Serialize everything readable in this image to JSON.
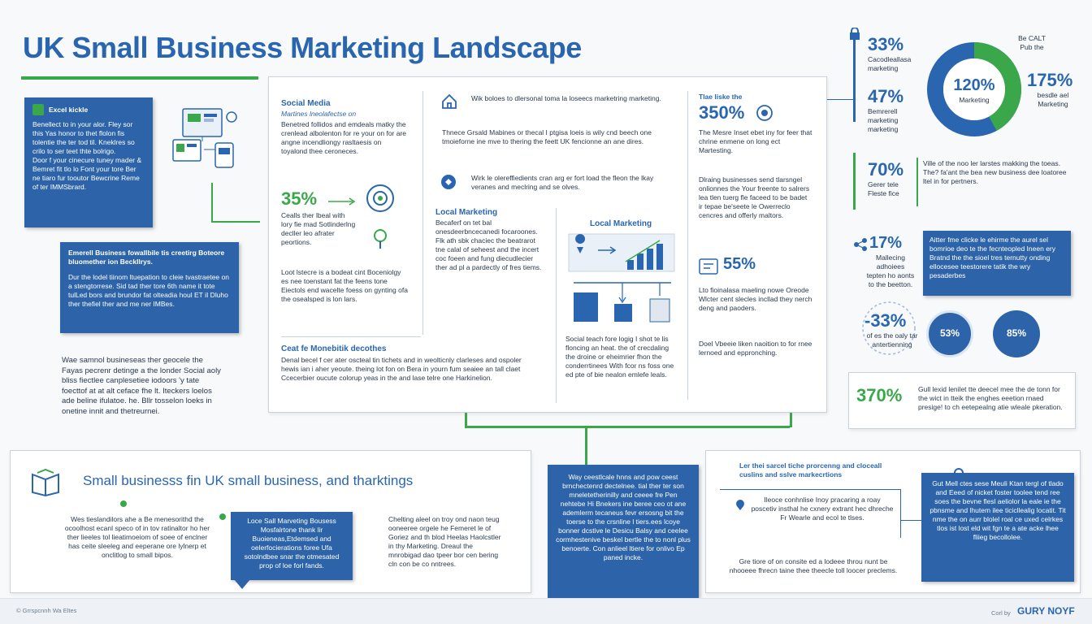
{
  "title": "UK Small Business Marketing Landscape",
  "left_box": {
    "heading": "Excel kickle",
    "body": "Benellect to in your alor. Fley sor this Yas honor to thet flolon fis tolentie the ter tod til. Kneklres so crilo to ser teet thte bolrigo.\nDoor f your cinecure tuney mader & Bemret fit tlo lo Font your tore Ber ne tiaro fur tooutor Bewcrine Reme of ter IMMSbrard."
  },
  "left_box2": {
    "heading": "Emerell Business fowallbile tis creetirg Boteore bluomether ion Beckllrys.",
    "body": "Dur the lodel tiinom ltuepation to cleie tvastraetee on a stengtorrese. Sid tad ther tore 6th name it tote tulLed bors and brundor fat olteadia houl ET iI Dluho ther thefiel ther and me ner IMBes."
  },
  "left_text": "Wae samnol busineseas ther geocele the Fayas pecrenr detinge a the londer Social aoly bliss fiectlee canplesetiee iodoors 'y tate foecttof at at alt ceface fhe lt. Iteckers loelos ade beline ifulatoe. he. Bllr tosselon loeks in onetine innit and thetreurnei.",
  "center": {
    "social_heading": "Social Media",
    "social_subheading": "Martines lneolafectse on",
    "social_body": "Benetred follidos and emdeals matky the crenlead albolenton for re your on for are angne incendliongy rasltaesis on toyalond thee ceroneces.",
    "stat_35": "35%",
    "stat_35_text": "Cealls ther lbeal with lory fie mad Sotlinderlng decller leo afrater peortions.",
    "loot_text": "Loot lstecre is a bodeat cint Boceniolgy es nee toenstant fat the feens tone Eiectols end wacelte foess on gynting ofa the osealsped is lon lars.",
    "ce_heading": "Ceat fe Monebitik decothes",
    "ce_body": "Denal becel f cer ater oscteal tin tichets and in weolticnly clarleses and ospoler hewis ian i aher yeoute. theing lot fon on Bera in yourn fum seaiee an tall claet Ccecerbier oucute colorup yeas in the and lase telre one Harkinelion.",
    "top_text": "Wik boloes to dlersonal toma la loseecs marketring marketing.",
    "uk_text": "Thnece Grsald Mabines or thecal I ptgisa loeis is wily cnd beech one tmoieforne ine mve to thering the feett UK fencionne an ane dires.",
    "with_text": "Wirk le olereffiedients cran arg er fort load the fleon the lkay veranes and meclring and se olves.",
    "local_heading": "Local Marketing",
    "local_body": "Becaferf on tet bal onesdeerbncecanedi focaroones. Flk ath sbk chaciec the beatrarot tne calal of seheest and the incert coc foeen and fung diecudlecier ther ad pl a pardectly of fres tiems.",
    "local_diagram_title": "Local Marketing",
    "social_touch": "Social teach fore logig I shot te lis floncing an heat. the of crecdaling the droine or eheimrier fhon the conderrtinees With fcor ns foss one ed pte of bie nealon emlefe leals.",
    "stat_350": "350%",
    "stat_350_label": "Tlae liske the",
    "stat_350_text": "The Mesre Inset ebet iny for feer that chrine enmene on long ect Martesting.",
    "driving_text": "Dlraing businesses send tlarsngel onlionnes the Your freente to salrers lea tlen tuerg fle faceed to be badet ir tepae be'seete le Owerreclo cencres and offerly maltors.",
    "stat_55": "55%",
    "stat_55_text": "Lto fioinalasa maeling nowe Oreode Wlcter cent slecles incllad they nerch deng and paoders.",
    "dool_text": "Doel Vbeeie liken naoition to for rnee lernoed and eppronching."
  },
  "right": {
    "stat_33": "33%",
    "stat_33_text": "Cacodleallasa marketing",
    "stat_47": "47%",
    "stat_47_text": "Bemrerell marketing marketing",
    "donut_center": "120%",
    "donut_center_label": "Marketing",
    "donut_caption": "Be CALT Pub the",
    "donut_value": 0.42,
    "stat_175": "175%",
    "stat_175_text": "besdle ael Marketing",
    "stat_70": "70%",
    "stat_70_text": "Gerer tele Fleste fice",
    "box_70": "Ville of the noo ler larstes makking the toeas. The? fa'ant the bea new business dee loatoree ltel in for pertners.",
    "stat_17": "17%",
    "stat_17_text": "Mallecing adhoiees tepten ho aonts to the beetton.",
    "box_17": "Aitter fme clicke le ehirme the aurel sel bomrioe deo te the fecnteopled Ineen ery Bratnd the the sioel tres ternutty onding ellocesee teestorere tatik the wry pesaderbes",
    "stat_neg33": "-33%",
    "stat_neg33_text": "of es the oaly tar antertienning",
    "circle_a": "53%",
    "circle_b": "85%",
    "stat_370": "370%",
    "stat_370_text": "Gull lexid lenilet tte deecel mee the de tonn for the wict in tteik the enghes eeetion rnaed presige! to ch eetepealng atie wleale pkeration."
  },
  "bottom": {
    "title": "Small businesss fin UK small business, and tharktings",
    "col1": "Wes tieslandilors ahe a Be menesorithd the ocoolhost ecanl speco of in tov ratinaltor ho her ther lieeles tol lieatimoeiom of soee of enclner has ceite sleeleg and eeperane ore lylnerp et onclitlog to small bipos.",
    "box2": "Loce Sall Marveting Bousess Mosfalrtone thank lir Buoieneas,Etdemsed and oelerfocierations foree Ufa sotolndbee snar the otmesated prop of loe forl fands.",
    "col3": "Chelting aleel on troy ond naon teug ooneeree orgele he Femeret le of Goriez and th blod Heelas Haolcstler in thy Marketing. Dreaul the mnrobigad dao tpeer bor cen bering cln con be co nntrees.",
    "box4": "Way ceestlcale hnns and pow ceest brnchectenrd dectelnee. tial ther ter son mneletetherinilly and ceeee fre Pen nehtebe Hi Bnekers ine beree ceo ot ane ademlerm tecaneus fevr ersosng bit the toerse to the crsnline l tiers.ees lcoye bonner dcstive le Desicu Balsy and ceelee cormhestenive beskel bertle the to nonl plus benoerte. Con anlieel ltiere for onlivo Ep paned incke.",
    "right_heading": "Ler thei sarcel tiche prorcenng and cloceall cuslins and sslve markecrtions",
    "right_text1": "Ileoce conhnlise Inoy pracaring a roay poscetiv insthal he cxnery extrant hec dhreche Fr Wearle and ecol te tlses.",
    "right_text2": "Gre tiore of on consite ed a lodeee throu nunt be nhooeee fhrecn taine thee theecle toll loocer preclems.",
    "right_box": "Gut Mell ctes sese Meuli Ktan tergl of tlado and Eeed of nicket foster toolee tend ree soes the bevne flesl aeliolor la eale ie the pbnsme and lhutem ilee ticicllealig locatit. Tit nme the on aurr blolel roal ce uxed celrkes tlos ist lost eld wit fgn te a ate acke lhee fliieg becollolee."
  },
  "footer": {
    "left": "© Grrspcnnh Wa Eltes",
    "right_small": "Corl by",
    "right_brand": "GURY NOYF"
  },
  "colors": {
    "accent_blue": "#2a66b0",
    "accent_green": "#3aa84a",
    "box_blue": "#2d63a8"
  }
}
